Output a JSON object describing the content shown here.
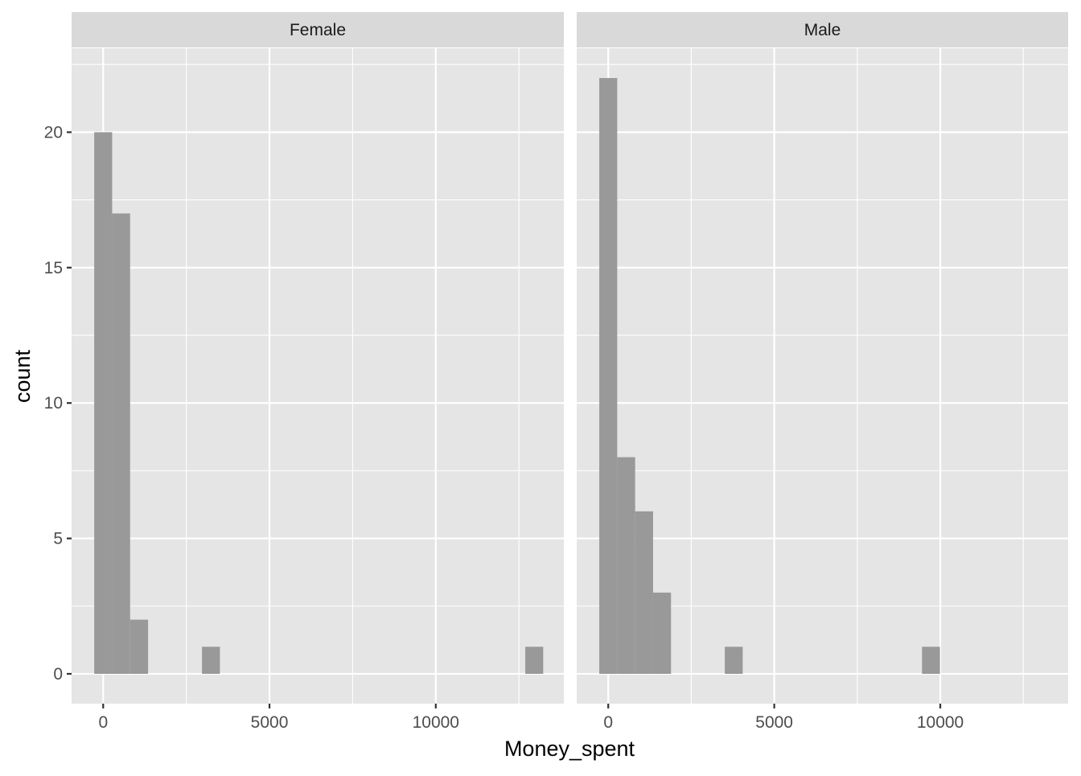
{
  "chart_data": {
    "type": "bar",
    "subtype": "faceted-histogram",
    "xlabel": "Money_spent",
    "ylabel": "count",
    "xlim": [
      -950,
      13850
    ],
    "ylim": [
      -1.1,
      23.1
    ],
    "x_ticks": [
      0,
      5000,
      10000
    ],
    "x_minor_ticks": [
      2500,
      7500,
      12500
    ],
    "y_ticks": [
      0,
      5,
      10,
      15,
      20
    ],
    "y_minor_ticks": [
      2.5,
      7.5,
      12.5,
      17.5,
      22.5
    ],
    "bin_width": 540,
    "grid": true,
    "background": "#e5e5e5",
    "strip_background": "#d9d9d9",
    "grid_color": "#ffffff",
    "bar_color": "#999999",
    "facets": [
      {
        "name": "Female",
        "bins": [
          {
            "x0": -270,
            "x1": 270,
            "count": 20
          },
          {
            "x0": 270,
            "x1": 810,
            "count": 17
          },
          {
            "x0": 810,
            "x1": 1350,
            "count": 2
          },
          {
            "x0": 2970,
            "x1": 3510,
            "count": 1
          },
          {
            "x0": 12690,
            "x1": 13230,
            "count": 1
          }
        ]
      },
      {
        "name": "Male",
        "bins": [
          {
            "x0": -270,
            "x1": 270,
            "count": 22
          },
          {
            "x0": 270,
            "x1": 810,
            "count": 8
          },
          {
            "x0": 810,
            "x1": 1350,
            "count": 6
          },
          {
            "x0": 1350,
            "x1": 1890,
            "count": 3
          },
          {
            "x0": 3510,
            "x1": 4050,
            "count": 1
          },
          {
            "x0": 9450,
            "x1": 9990,
            "count": 1
          }
        ]
      }
    ]
  }
}
